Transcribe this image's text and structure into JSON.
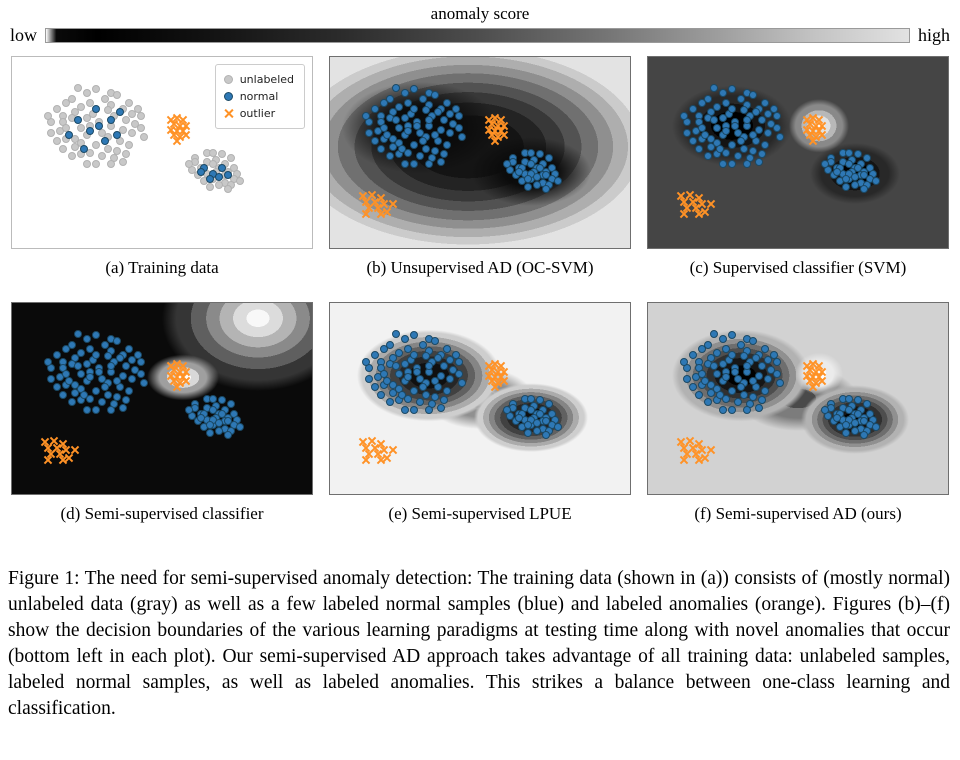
{
  "colorbar": {
    "title": "anomaly score",
    "low_label": "low",
    "high_label": "high"
  },
  "figure_caption": "Figure 1: The need for semi-supervised anomaly detection: The training data (shown in (a)) consists of (mostly normal) unlabeled data (gray) as well as a few labeled normal samples (blue) and labeled anomalies (orange). Figures (b)–(f) show the decision boundaries of the various learning paradigms at testing time along with novel anomalies that occur (bottom left in each plot). Our semi-supervised AD approach takes advantage of all training data: unlabeled samples, labeled normal samples, as well as labeled anomalies. This strikes a balance between one-class learning and classification.",
  "chart_data": {
    "type": "scatter",
    "legend": [
      {
        "label": "unlabeled",
        "marker": "dot",
        "color": "gray"
      },
      {
        "label": "normal",
        "marker": "dot",
        "color": "blue"
      },
      {
        "label": "outlier",
        "marker": "x",
        "color": "orange"
      }
    ],
    "colors": {
      "gray": "#c8c8c8",
      "gray_edge": "#b2b2b2",
      "blue": "#2e78b5",
      "blue_edge": "#1b4965",
      "orange": "#ff9226",
      "orange_edge": "#d9700d"
    },
    "points": {
      "gray_big": [
        [
          15,
          27
        ],
        [
          18,
          24
        ],
        [
          20,
          22
        ],
        [
          25,
          19
        ],
        [
          28,
          17
        ],
        [
          33,
          19
        ],
        [
          35,
          20
        ],
        [
          39,
          24
        ],
        [
          42,
          27
        ],
        [
          17,
          31
        ],
        [
          21,
          29
        ],
        [
          23,
          26
        ],
        [
          26,
          24
        ],
        [
          31,
          22
        ],
        [
          33,
          25
        ],
        [
          37,
          27
        ],
        [
          40,
          30
        ],
        [
          13,
          34
        ],
        [
          17,
          34
        ],
        [
          20,
          32
        ],
        [
          25,
          32
        ],
        [
          27,
          30
        ],
        [
          32,
          28
        ],
        [
          34,
          31
        ],
        [
          38,
          33
        ],
        [
          41,
          35
        ],
        [
          13,
          40
        ],
        [
          16,
          39
        ],
        [
          18,
          37
        ],
        [
          23,
          37
        ],
        [
          26,
          36
        ],
        [
          29,
          34
        ],
        [
          33,
          36
        ],
        [
          37,
          38
        ],
        [
          40,
          40
        ],
        [
          43,
          37
        ],
        [
          15,
          44
        ],
        [
          18,
          43
        ],
        [
          21,
          43
        ],
        [
          25,
          41
        ],
        [
          30,
          40
        ],
        [
          32,
          42
        ],
        [
          36,
          44
        ],
        [
          39,
          46
        ],
        [
          17,
          48
        ],
        [
          21,
          47
        ],
        [
          23,
          45
        ],
        [
          28,
          46
        ],
        [
          32,
          48
        ],
        [
          35,
          49
        ],
        [
          38,
          51
        ],
        [
          20,
          52
        ],
        [
          23,
          51
        ],
        [
          26,
          50
        ],
        [
          30,
          52
        ],
        [
          34,
          53
        ],
        [
          25,
          56
        ],
        [
          28,
          56
        ],
        [
          33,
          56
        ],
        [
          43,
          31
        ],
        [
          44,
          42
        ],
        [
          12,
          31
        ],
        [
          37,
          55
        ],
        [
          22,
          16
        ]
      ],
      "gray_small": [
        [
          61,
          53
        ],
        [
          65,
          50
        ],
        [
          67,
          50
        ],
        [
          70,
          51
        ],
        [
          73,
          53
        ],
        [
          61,
          55
        ],
        [
          65,
          55
        ],
        [
          68,
          54
        ],
        [
          71,
          56
        ],
        [
          74,
          58
        ],
        [
          60,
          59
        ],
        [
          63,
          58
        ],
        [
          67,
          56
        ],
        [
          69,
          58
        ],
        [
          72,
          60
        ],
        [
          75,
          61
        ],
        [
          62,
          62
        ],
        [
          65,
          61
        ],
        [
          68,
          60
        ],
        [
          71,
          62
        ],
        [
          74,
          64
        ],
        [
          64,
          65
        ],
        [
          67,
          64
        ],
        [
          71,
          66
        ],
        [
          73,
          67
        ],
        [
          66,
          68
        ],
        [
          69,
          67
        ],
        [
          72,
          69
        ],
        [
          59,
          56
        ],
        [
          76,
          65
        ]
      ],
      "blue_big": [
        [
          22,
          33
        ],
        [
          28,
          27
        ],
        [
          33,
          33
        ],
        [
          26,
          39
        ],
        [
          31,
          44
        ],
        [
          19,
          41
        ],
        [
          35,
          41
        ],
        [
          29,
          36
        ],
        [
          24,
          48
        ],
        [
          36,
          29
        ]
      ],
      "blue_small": [
        [
          64,
          58
        ],
        [
          67,
          61
        ],
        [
          70,
          58
        ],
        [
          66,
          64
        ],
        [
          69,
          63
        ],
        [
          63,
          60
        ],
        [
          72,
          62
        ]
      ],
      "orange_train": [
        [
          53,
          33
        ],
        [
          55,
          32
        ],
        [
          57,
          33
        ],
        [
          54,
          35
        ],
        [
          56,
          36
        ],
        [
          58,
          36
        ],
        [
          53,
          38
        ],
        [
          55,
          39
        ],
        [
          57,
          39
        ],
        [
          54,
          41
        ],
        [
          56,
          42
        ],
        [
          58,
          41
        ],
        [
          55,
          44
        ]
      ],
      "orange_novel": [
        [
          11,
          73
        ],
        [
          14,
          72
        ],
        [
          17,
          74
        ],
        [
          12,
          76
        ],
        [
          15,
          76
        ],
        [
          18,
          77
        ],
        [
          13,
          79
        ],
        [
          16,
          79
        ],
        [
          19,
          81
        ],
        [
          12,
          82
        ],
        [
          17,
          82
        ],
        [
          21,
          77
        ]
      ]
    },
    "panels": [
      {
        "id": "a",
        "caption": "(a) Training data",
        "series": [
          {
            "ref": "gray_big",
            "marker": "dot",
            "color": "gray"
          },
          {
            "ref": "gray_small",
            "marker": "dot",
            "color": "gray"
          },
          {
            "ref": "blue_big",
            "marker": "dot",
            "color": "blue"
          },
          {
            "ref": "blue_small",
            "marker": "dot",
            "color": "blue"
          },
          {
            "ref": "orange_train",
            "marker": "x",
            "color": "orange"
          }
        ]
      },
      {
        "id": "b",
        "caption": "(b) Unsupervised AD (OC-SVM)",
        "series": [
          {
            "ref": "gray_big",
            "marker": "dot",
            "color": "blue"
          },
          {
            "ref": "gray_small",
            "marker": "dot",
            "color": "blue"
          },
          {
            "ref": "blue_big",
            "marker": "dot",
            "color": "blue"
          },
          {
            "ref": "blue_small",
            "marker": "dot",
            "color": "blue"
          },
          {
            "ref": "orange_train",
            "marker": "x",
            "color": "orange"
          },
          {
            "ref": "orange_novel",
            "marker": "x",
            "color": "orange"
          }
        ]
      },
      {
        "id": "c",
        "caption": "(c) Supervised classifier (SVM)",
        "series": [
          {
            "ref": "gray_big",
            "marker": "dot",
            "color": "blue"
          },
          {
            "ref": "gray_small",
            "marker": "dot",
            "color": "blue"
          },
          {
            "ref": "blue_big",
            "marker": "dot",
            "color": "blue"
          },
          {
            "ref": "blue_small",
            "marker": "dot",
            "color": "blue"
          },
          {
            "ref": "orange_train",
            "marker": "x",
            "color": "orange"
          },
          {
            "ref": "orange_novel",
            "marker": "x",
            "color": "orange"
          }
        ]
      },
      {
        "id": "d",
        "caption": "(d) Semi-supervised classifier",
        "series": [
          {
            "ref": "gray_big",
            "marker": "dot",
            "color": "blue"
          },
          {
            "ref": "gray_small",
            "marker": "dot",
            "color": "blue"
          },
          {
            "ref": "blue_big",
            "marker": "dot",
            "color": "blue"
          },
          {
            "ref": "blue_small",
            "marker": "dot",
            "color": "blue"
          },
          {
            "ref": "orange_train",
            "marker": "x",
            "color": "orange"
          },
          {
            "ref": "orange_novel",
            "marker": "x",
            "color": "orange"
          }
        ]
      },
      {
        "id": "e",
        "caption": "(e) Semi-supervised LPUE",
        "series": [
          {
            "ref": "gray_big",
            "marker": "dot",
            "color": "blue"
          },
          {
            "ref": "gray_small",
            "marker": "dot",
            "color": "blue"
          },
          {
            "ref": "blue_big",
            "marker": "dot",
            "color": "blue"
          },
          {
            "ref": "blue_small",
            "marker": "dot",
            "color": "blue"
          },
          {
            "ref": "orange_train",
            "marker": "x",
            "color": "orange"
          },
          {
            "ref": "orange_novel",
            "marker": "x",
            "color": "orange"
          }
        ]
      },
      {
        "id": "f",
        "caption": "(f) Semi-supervised AD (ours)",
        "series": [
          {
            "ref": "gray_big",
            "marker": "dot",
            "color": "blue"
          },
          {
            "ref": "gray_small",
            "marker": "dot",
            "color": "blue"
          },
          {
            "ref": "blue_big",
            "marker": "dot",
            "color": "blue"
          },
          {
            "ref": "blue_small",
            "marker": "dot",
            "color": "blue"
          },
          {
            "ref": "orange_train",
            "marker": "x",
            "color": "orange"
          },
          {
            "ref": "orange_novel",
            "marker": "x",
            "color": "orange"
          }
        ]
      }
    ]
  }
}
